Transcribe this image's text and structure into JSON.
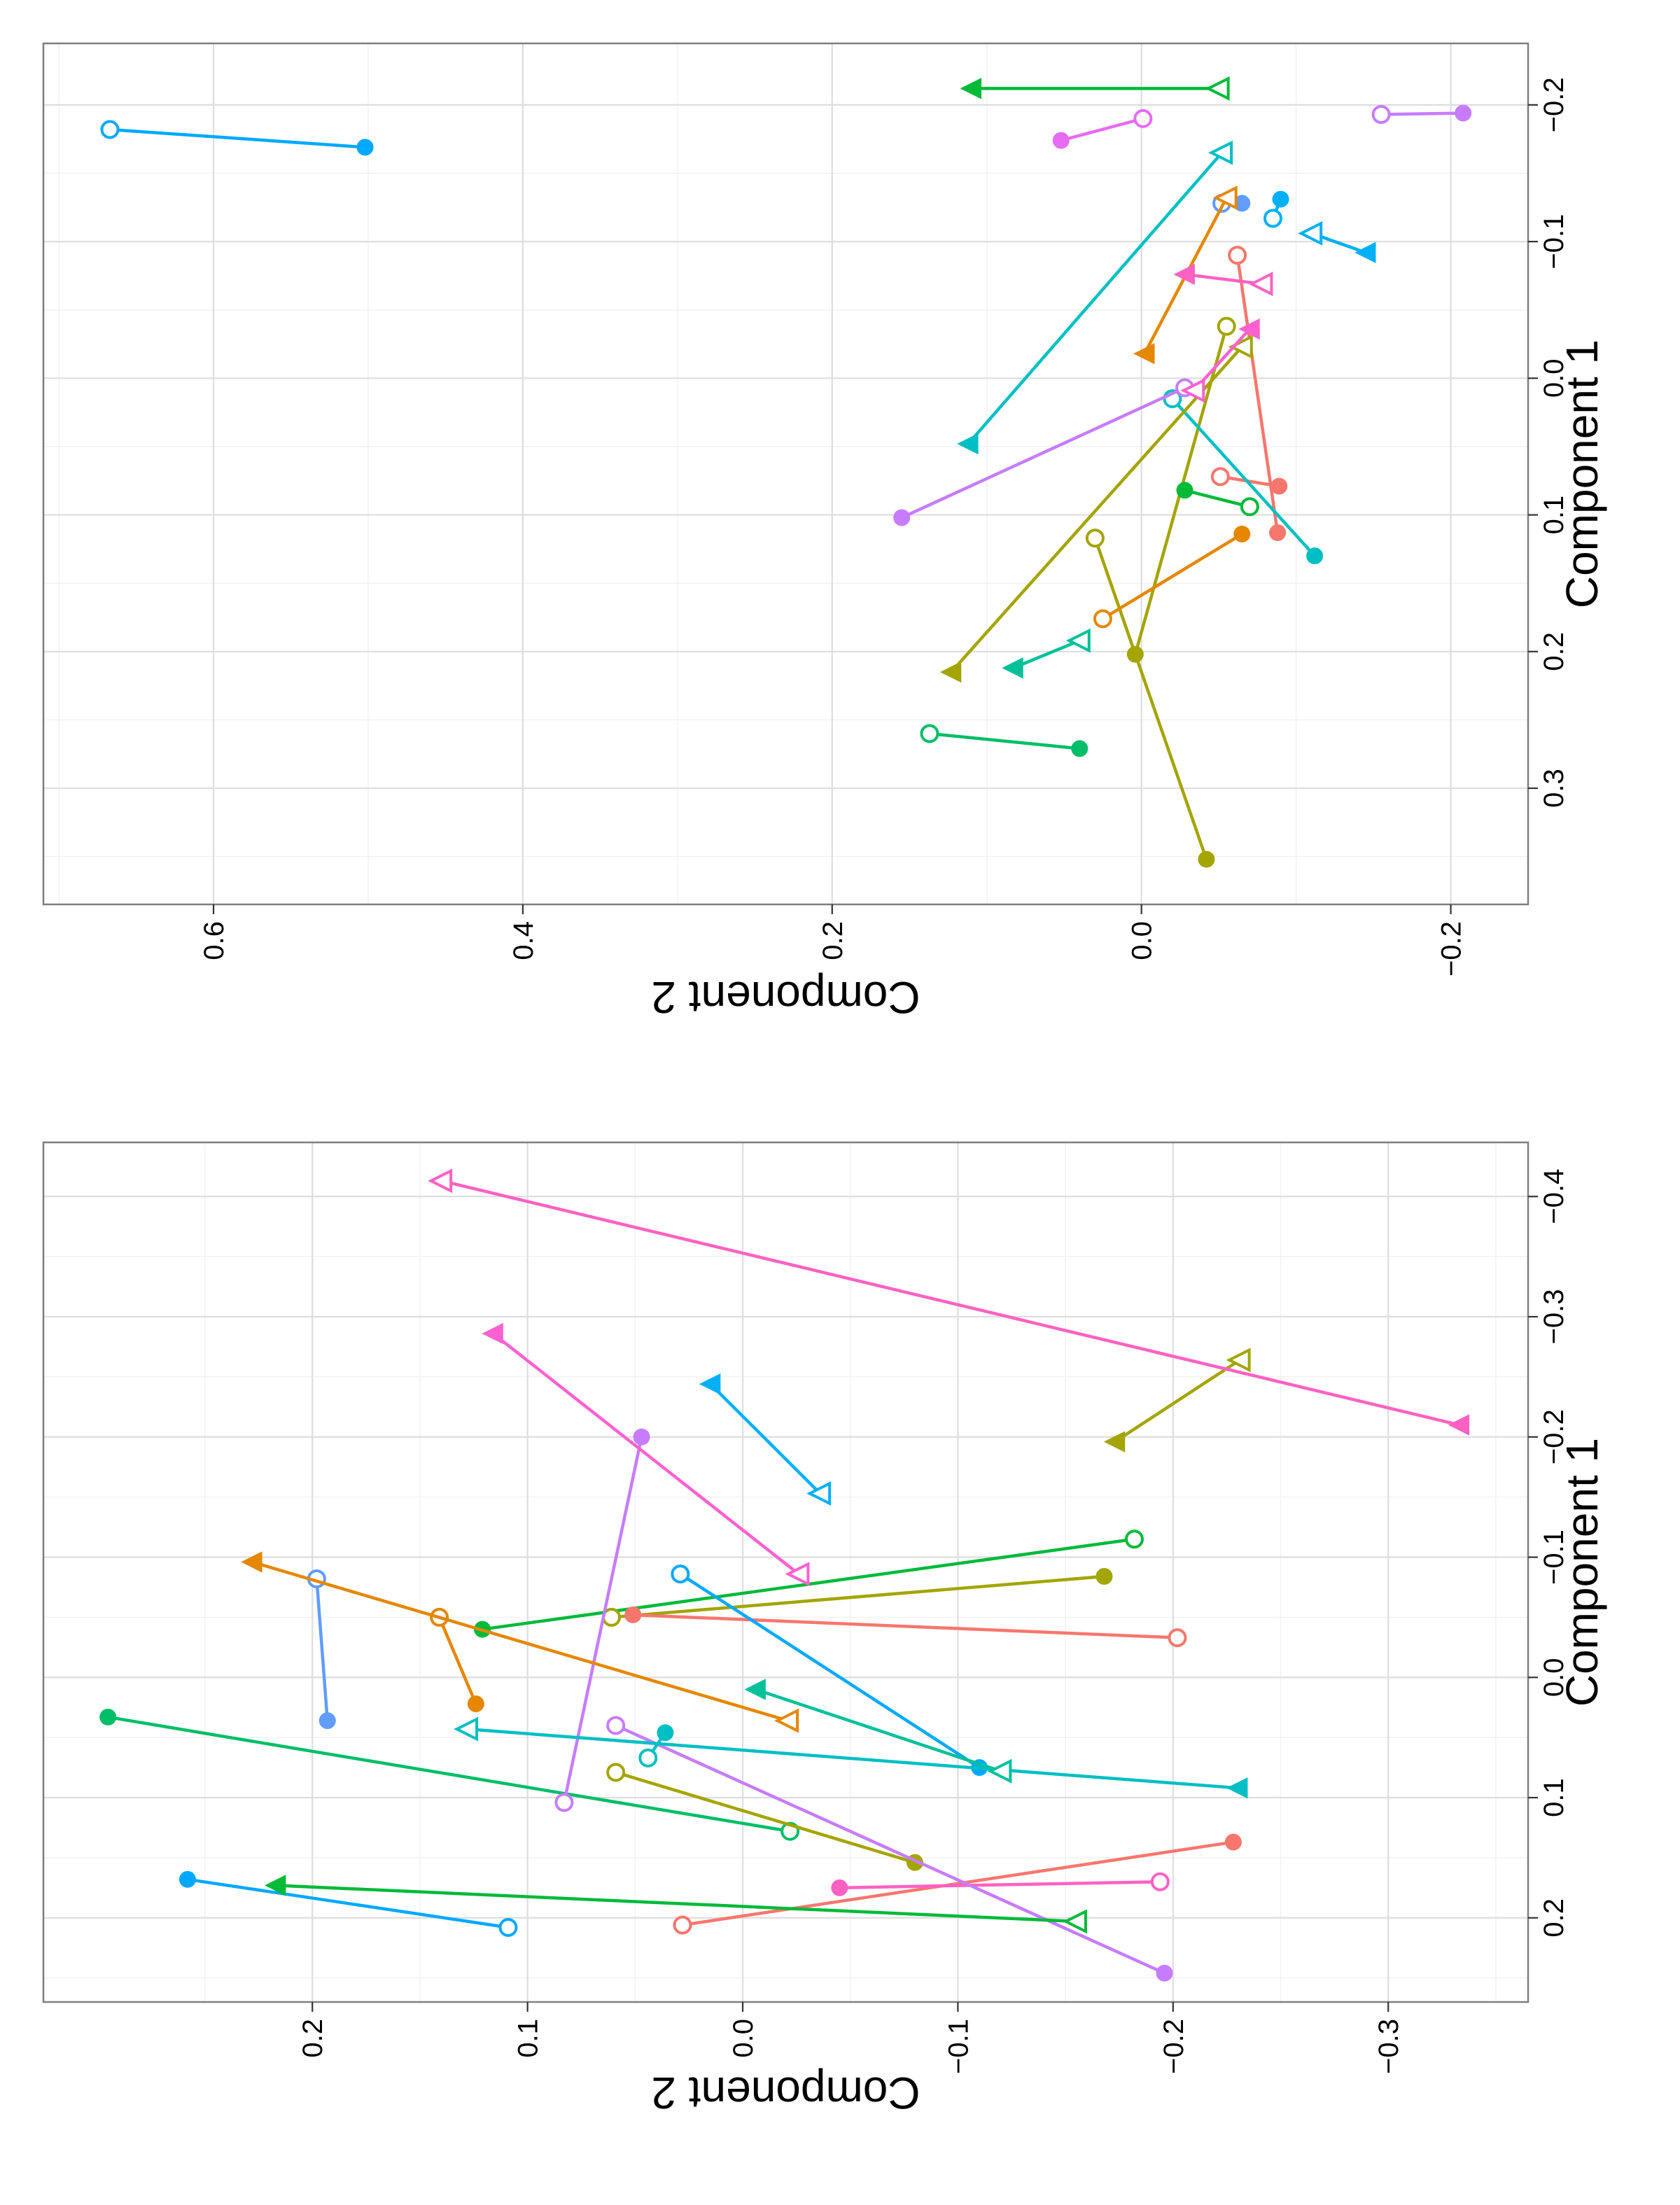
{
  "chart_data": [
    {
      "type": "scatter",
      "panel": "top",
      "xlabel": "Component 1",
      "ylabel": "Component 2",
      "xlim": [
        -0.245,
        0.385
      ],
      "ylim": [
        -0.25,
        0.71
      ],
      "x_ticks": [
        -0.2,
        -0.1,
        0.0,
        0.1,
        0.2,
        0.3
      ],
      "x_tick_labels": [
        "−0.2",
        "−0.1",
        "0.0",
        "0.1",
        "0.2",
        "0.3"
      ],
      "y_ticks": [
        -0.2,
        0.0,
        0.2,
        0.4,
        0.6
      ],
      "y_tick_labels": [
        "−0.2",
        "0.0",
        "0.2",
        "0.4",
        "0.6"
      ],
      "grid": true,
      "legend": "none",
      "orientation": "rotated-90-ccw",
      "markers": {
        "from": "filled",
        "to": "open"
      },
      "trajectories": [
        {
          "color": "#00A9FF",
          "shape": "circle",
          "from": [
            -0.169,
            0.502
          ],
          "to": [
            -0.182,
            0.667
          ]
        },
        {
          "color": "#00BE67",
          "shape": "circle",
          "from": [
            0.271,
            0.04
          ],
          "to": [
            0.26,
            0.137
          ]
        },
        {
          "color": "#A3A500",
          "shape": "circle",
          "from": [
            0.352,
            -0.042
          ],
          "to": [
            0.117,
            0.03
          ]
        },
        {
          "color": "#A3A500",
          "shape": "circle",
          "from": [
            0.202,
            0.004
          ],
          "to": [
            -0.038,
            -0.055
          ]
        },
        {
          "color": "#00BA38",
          "shape": "circle",
          "from": [
            0.082,
            -0.028
          ],
          "to": [
            0.094,
            -0.07
          ]
        },
        {
          "color": "#F8766D",
          "shape": "circle",
          "from": [
            0.113,
            -0.088
          ],
          "to": [
            -0.09,
            -0.062
          ]
        },
        {
          "color": "#F8766D",
          "shape": "circle",
          "from": [
            0.079,
            -0.089
          ],
          "to": [
            0.072,
            -0.051
          ]
        },
        {
          "color": "#E76BF3",
          "shape": "circle",
          "from": [
            -0.174,
            0.052
          ],
          "to": [
            -0.19,
            -0.001
          ]
        },
        {
          "color": "#00BFC4",
          "shape": "circle",
          "from": [
            0.13,
            -0.112
          ],
          "to": [
            0.015,
            -0.02
          ]
        },
        {
          "color": "#E58700",
          "shape": "circle",
          "from": [
            0.114,
            -0.065
          ],
          "to": [
            0.176,
            0.025
          ]
        },
        {
          "color": "#C77CFF",
          "shape": "circle",
          "from": [
            0.102,
            0.155
          ],
          "to": [
            0.007,
            -0.028
          ]
        },
        {
          "color": "#C77CFF",
          "shape": "circle",
          "from": [
            -0.194,
            -0.208
          ],
          "to": [
            -0.193,
            -0.155
          ]
        },
        {
          "color": "#619CFF",
          "shape": "circle",
          "from": [
            -0.128,
            -0.065
          ],
          "to": [
            -0.128,
            -0.052
          ]
        },
        {
          "color": "#00B0F6",
          "shape": "circle",
          "from": [
            -0.131,
            -0.09
          ],
          "to": [
            -0.117,
            -0.085
          ]
        },
        {
          "color": "#A3A500",
          "shape": "triangle",
          "from": [
            0.215,
            0.123
          ],
          "to": [
            -0.023,
            -0.065
          ]
        },
        {
          "color": "#00C19A",
          "shape": "triangle",
          "from": [
            0.212,
            0.083
          ],
          "to": [
            0.192,
            0.04
          ]
        },
        {
          "color": "#00BFC4",
          "shape": "triangle",
          "from": [
            0.048,
            0.112
          ],
          "to": [
            -0.165,
            -0.052
          ]
        },
        {
          "color": "#E58700",
          "shape": "triangle",
          "from": [
            -0.018,
            -0.002
          ],
          "to": [
            -0.132,
            -0.055
          ]
        },
        {
          "color": "#FD61D1",
          "shape": "triangle",
          "from": [
            -0.036,
            -0.07
          ],
          "to": [
            0.009,
            -0.034
          ]
        },
        {
          "color": "#FF61C3",
          "shape": "triangle",
          "from": [
            -0.076,
            -0.028
          ],
          "to": [
            -0.069,
            -0.078
          ]
        },
        {
          "color": "#00B0F6",
          "shape": "triangle",
          "from": [
            -0.092,
            -0.145
          ],
          "to": [
            -0.106,
            -0.11
          ]
        },
        {
          "color": "#00BA38",
          "shape": "triangle",
          "from": [
            -0.212,
            0.11
          ],
          "to": [
            -0.212,
            -0.05
          ]
        }
      ]
    },
    {
      "type": "scatter",
      "panel": "bottom",
      "xlabel": "Component 1",
      "ylabel": "Component 2",
      "xlim": [
        -0.445,
        0.27
      ],
      "ylim": [
        -0.365,
        0.325
      ],
      "x_ticks": [
        -0.4,
        -0.3,
        -0.2,
        -0.1,
        0.0,
        0.1,
        0.2
      ],
      "x_tick_labels": [
        "−0.4",
        "−0.3",
        "−0.2",
        "−0.1",
        "0.0",
        "0.1",
        "0.2"
      ],
      "y_ticks": [
        -0.3,
        -0.2,
        -0.1,
        0.0,
        0.1,
        0.2
      ],
      "y_tick_labels": [
        "−0.3",
        "−0.2",
        "−0.1",
        "0.0",
        "0.1",
        "0.2"
      ],
      "grid": true,
      "legend": "none",
      "orientation": "rotated-90-ccw",
      "markers": {
        "from": "filled",
        "to": "open"
      },
      "trajectories": [
        {
          "color": "#00A9FF",
          "shape": "circle",
          "from": [
            0.168,
            0.258
          ],
          "to": [
            0.208,
            0.109
          ]
        },
        {
          "color": "#00BE67",
          "shape": "circle",
          "from": [
            0.033,
            0.295
          ],
          "to": [
            0.128,
            -0.022
          ]
        },
        {
          "color": "#A3A500",
          "shape": "circle",
          "from": [
            0.154,
            -0.08
          ],
          "to": [
            0.079,
            0.059
          ]
        },
        {
          "color": "#F8766D",
          "shape": "circle",
          "from": [
            0.137,
            -0.228
          ],
          "to": [
            0.206,
            0.028
          ]
        },
        {
          "color": "#FF61C3",
          "shape": "circle",
          "from": [
            0.175,
            -0.045
          ],
          "to": [
            0.17,
            -0.194
          ]
        },
        {
          "color": "#C77CFF",
          "shape": "circle",
          "from": [
            0.246,
            -0.196
          ],
          "to": [
            0.04,
            0.059
          ]
        },
        {
          "color": "#00BFC4",
          "shape": "circle",
          "from": [
            0.046,
            0.036
          ],
          "to": [
            0.067,
            0.044
          ]
        },
        {
          "color": "#619CFF",
          "shape": "circle",
          "from": [
            0.036,
            0.193
          ],
          "to": [
            -0.082,
            0.198
          ]
        },
        {
          "color": "#E58700",
          "shape": "circle",
          "from": [
            0.022,
            0.124
          ],
          "to": [
            -0.05,
            0.141
          ]
        },
        {
          "color": "#00BA38",
          "shape": "circle",
          "from": [
            -0.04,
            0.121
          ],
          "to": [
            -0.115,
            -0.182
          ]
        },
        {
          "color": "#A3A500",
          "shape": "circle",
          "from": [
            -0.084,
            -0.168
          ],
          "to": [
            -0.05,
            0.061
          ]
        },
        {
          "color": "#F8766D",
          "shape": "circle",
          "from": [
            -0.052,
            0.051
          ],
          "to": [
            -0.033,
            -0.202
          ]
        },
        {
          "color": "#00A9FF",
          "shape": "circle",
          "from": [
            0.075,
            -0.11
          ],
          "to": [
            -0.086,
            0.029
          ]
        },
        {
          "color": "#C77CFF",
          "shape": "circle",
          "from": [
            -0.2,
            0.047
          ],
          "to": [
            0.104,
            0.083
          ]
        },
        {
          "color": "#00BA38",
          "shape": "triangle",
          "from": [
            0.173,
            0.217
          ],
          "to": [
            0.203,
            -0.155
          ]
        },
        {
          "color": "#00BFC4",
          "shape": "triangle",
          "from": [
            0.092,
            -0.23
          ],
          "to": [
            0.043,
            0.128
          ]
        },
        {
          "color": "#00C19A",
          "shape": "triangle",
          "from": [
            0.01,
            -0.006
          ],
          "to": [
            0.078,
            -0.12
          ]
        },
        {
          "color": "#E58700",
          "shape": "triangle",
          "from": [
            -0.096,
            0.228
          ],
          "to": [
            0.036,
            -0.021
          ]
        },
        {
          "color": "#FD61D1",
          "shape": "triangle",
          "from": [
            -0.286,
            0.116
          ],
          "to": [
            -0.086,
            -0.026
          ]
        },
        {
          "color": "#00B0F6",
          "shape": "triangle",
          "from": [
            -0.244,
            0.015
          ],
          "to": [
            -0.153,
            -0.036
          ]
        },
        {
          "color": "#A3A500",
          "shape": "triangle",
          "from": [
            -0.196,
            -0.173
          ],
          "to": [
            -0.264,
            -0.231
          ]
        },
        {
          "color": "#FF61C3",
          "shape": "triangle",
          "from": [
            -0.21,
            -0.333
          ],
          "to": [
            -0.413,
            0.14
          ]
        }
      ]
    }
  ]
}
